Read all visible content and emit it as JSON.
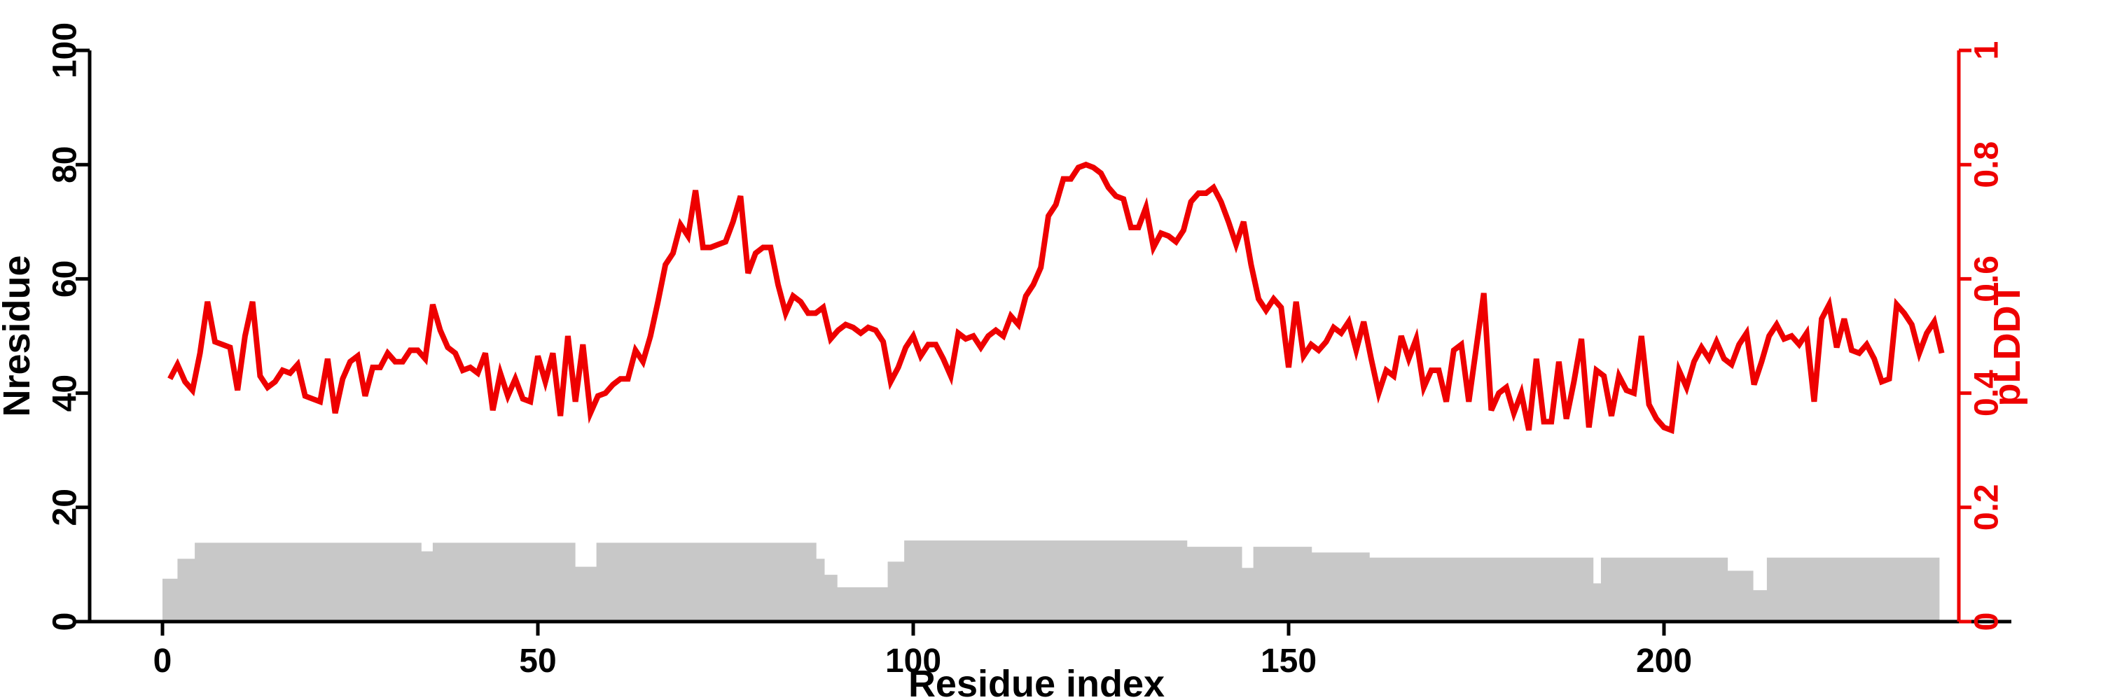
{
  "chart_data": {
    "type": "line",
    "title": "",
    "xlabel": "Residue index",
    "ylabel_left": "Nresidue",
    "ylabel_right": "pLDDT",
    "x_ticks": [
      0,
      50,
      100,
      150,
      200
    ],
    "left_ticks": [
      0,
      20,
      40,
      60,
      80,
      100
    ],
    "right_ticks": [
      "0",
      "0.2",
      "0.4",
      "0.6",
      "0.8",
      "1"
    ],
    "right_tick_values": [
      0,
      0.2,
      0.4,
      0.6,
      0.8,
      1
    ],
    "xlim": [
      0,
      240
    ],
    "ylim_left": [
      0,
      100
    ],
    "ylim_right": [
      0,
      1
    ],
    "grid": false,
    "legend_position": "none",
    "colors": {
      "line": "#ee0000",
      "right_axis": "#ee0000",
      "area_fill": "#c8c8c8",
      "axis": "#000000",
      "background": "#ffffff"
    },
    "series": [
      {
        "name": "pLDDT",
        "type": "line",
        "axis": "right",
        "color": "#ee0000",
        "start_residue": 1,
        "step": 1,
        "values": [
          0.425,
          0.45,
          0.42,
          0.405,
          0.47,
          0.56,
          0.49,
          0.485,
          0.48,
          0.405,
          0.5,
          0.56,
          0.43,
          0.41,
          0.42,
          0.44,
          0.435,
          0.45,
          0.395,
          0.39,
          0.385,
          0.46,
          0.365,
          0.425,
          0.455,
          0.465,
          0.395,
          0.445,
          0.445,
          0.47,
          0.455,
          0.455,
          0.475,
          0.475,
          0.46,
          0.555,
          0.51,
          0.48,
          0.47,
          0.44,
          0.445,
          0.435,
          0.47,
          0.37,
          0.435,
          0.395,
          0.425,
          0.39,
          0.385,
          0.465,
          0.42,
          0.47,
          0.36,
          0.5,
          0.385,
          0.485,
          0.365,
          0.395,
          0.4,
          0.415,
          0.425,
          0.425,
          0.475,
          0.455,
          0.5,
          0.56,
          0.625,
          0.645,
          0.695,
          0.675,
          0.755,
          0.655,
          0.655,
          0.66,
          0.665,
          0.7,
          0.745,
          0.61,
          0.645,
          0.655,
          0.655,
          0.59,
          0.54,
          0.57,
          0.56,
          0.54,
          0.54,
          0.55,
          0.495,
          0.51,
          0.52,
          0.515,
          0.505,
          0.515,
          0.51,
          0.49,
          0.42,
          0.445,
          0.48,
          0.5,
          0.465,
          0.485,
          0.485,
          0.46,
          0.43,
          0.505,
          0.495,
          0.5,
          0.48,
          0.5,
          0.51,
          0.5,
          0.535,
          0.52,
          0.57,
          0.59,
          0.62,
          0.71,
          0.73,
          0.775,
          0.775,
          0.795,
          0.8,
          0.795,
          0.785,
          0.76,
          0.745,
          0.74,
          0.69,
          0.69,
          0.725,
          0.655,
          0.68,
          0.675,
          0.665,
          0.685,
          0.735,
          0.75,
          0.75,
          0.76,
          0.735,
          0.7,
          0.66,
          0.7,
          0.625,
          0.565,
          0.545,
          0.565,
          0.55,
          0.445,
          0.56,
          0.465,
          0.485,
          0.475,
          0.49,
          0.515,
          0.505,
          0.525,
          0.475,
          0.525,
          0.46,
          0.4,
          0.44,
          0.43,
          0.5,
          0.46,
          0.495,
          0.41,
          0.44,
          0.44,
          0.385,
          0.475,
          0.485,
          0.385,
          0.48,
          0.575,
          0.37,
          0.4,
          0.41,
          0.365,
          0.4,
          0.335,
          0.46,
          0.35,
          0.35,
          0.455,
          0.355,
          0.42,
          0.495,
          0.34,
          0.44,
          0.43,
          0.36,
          0.43,
          0.405,
          0.4,
          0.5,
          0.38,
          0.355,
          0.34,
          0.335,
          0.44,
          0.41,
          0.455,
          0.48,
          0.46,
          0.49,
          0.46,
          0.45,
          0.485,
          0.505,
          0.415,
          0.455,
          0.5,
          0.52,
          0.495,
          0.5,
          0.485,
          0.505,
          0.385,
          0.53,
          0.555,
          0.48,
          0.53,
          0.475,
          0.47,
          0.485,
          0.46,
          0.42,
          0.425,
          0.555,
          0.54,
          0.52,
          0.47,
          0.505,
          0.525,
          0.47
        ]
      },
      {
        "name": "Nresidue",
        "type": "step-area",
        "axis": "left",
        "color": "#c8c8c8",
        "steps": [
          [
            0,
            2,
            7.5
          ],
          [
            2,
            4.3,
            11
          ],
          [
            4.3,
            34.5,
            13.8
          ],
          [
            34.5,
            36,
            12.3
          ],
          [
            36,
            55,
            13.8
          ],
          [
            55,
            57.8,
            9.6
          ],
          [
            57.8,
            87.1,
            13.8
          ],
          [
            87.1,
            88.2,
            11
          ],
          [
            88.2,
            89.9,
            8.2
          ],
          [
            89.9,
            96.6,
            6
          ],
          [
            96.6,
            98.8,
            10.5
          ],
          [
            98.8,
            111.7,
            14.2
          ],
          [
            111.7,
            136.5,
            14.2
          ],
          [
            136.5,
            143.8,
            13.1
          ],
          [
            143.8,
            145.3,
            9.4
          ],
          [
            145.3,
            153.1,
            13.1
          ],
          [
            153.1,
            160.8,
            12.1
          ],
          [
            160.8,
            190.6,
            11.2
          ],
          [
            190.6,
            191.6,
            6.7
          ],
          [
            191.6,
            208.5,
            11.2
          ],
          [
            208.5,
            211.9,
            8.9
          ],
          [
            211.9,
            213.7,
            5.5
          ],
          [
            213.7,
            236.7,
            11.2
          ]
        ]
      }
    ]
  }
}
